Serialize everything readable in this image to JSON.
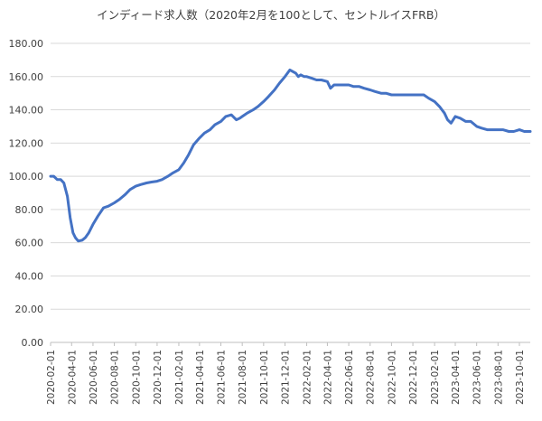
{
  "chart_data": {
    "type": "line",
    "title": "インディード求人数（2020年2月を100として、セントルイスFRB）",
    "xlabel": "",
    "ylabel": "",
    "ylim": [
      0,
      180
    ],
    "yticks": [
      0,
      20,
      40,
      60,
      80,
      100,
      120,
      140,
      160,
      180
    ],
    "ytick_labels": [
      "0.00",
      "20.00",
      "40.00",
      "60.00",
      "80.00",
      "100.00",
      "120.00",
      "140.00",
      "160.00",
      "180.00"
    ],
    "xlim": [
      "2020-02-01",
      "2023-11-01"
    ],
    "xtick_labels": [
      "2020-02-01",
      "2020-04-01",
      "2020-06-01",
      "2020-08-01",
      "2020-10-01",
      "2020-12-01",
      "2021-02-01",
      "2021-04-01",
      "2021-06-01",
      "2021-08-01",
      "2021-10-01",
      "2021-12-01",
      "2022-02-01",
      "2022-04-01",
      "2022-06-01",
      "2022-08-01",
      "2022-10-01",
      "2022-12-01",
      "2023-02-01",
      "2023-04-01",
      "2023-06-01",
      "2023-08-01",
      "2023-10-01"
    ],
    "grid": true,
    "legend": "none",
    "color": "#4472c4",
    "series": [
      {
        "x": [
          "2020-02-01",
          "2020-02-10",
          "2020-02-20",
          "2020-03-01",
          "2020-03-10",
          "2020-03-20",
          "2020-03-28",
          "2020-04-05",
          "2020-04-12",
          "2020-04-20",
          "2020-05-01",
          "2020-05-10",
          "2020-05-20",
          "2020-06-01",
          "2020-06-15",
          "2020-07-01",
          "2020-07-15",
          "2020-08-01",
          "2020-08-15",
          "2020-09-01",
          "2020-09-15",
          "2020-10-01",
          "2020-10-15",
          "2020-11-01",
          "2020-11-15",
          "2020-12-01",
          "2020-12-15",
          "2021-01-01",
          "2021-01-15",
          "2021-02-01",
          "2021-02-15",
          "2021-03-01",
          "2021-03-15",
          "2021-04-01",
          "2021-04-15",
          "2021-05-01",
          "2021-05-15",
          "2021-06-01",
          "2021-06-15",
          "2021-07-01",
          "2021-07-15",
          "2021-07-25",
          "2021-08-01",
          "2021-08-15",
          "2021-09-01",
          "2021-09-15",
          "2021-10-01",
          "2021-10-15",
          "2021-11-01",
          "2021-11-15",
          "2021-12-01",
          "2021-12-15",
          "2022-01-01",
          "2022-01-08",
          "2022-01-15",
          "2022-01-25",
          "2022-02-01",
          "2022-02-15",
          "2022-03-01",
          "2022-03-15",
          "2022-04-01",
          "2022-04-10",
          "2022-04-20",
          "2022-05-01",
          "2022-05-15",
          "2022-06-01",
          "2022-06-15",
          "2022-07-01",
          "2022-07-15",
          "2022-08-01",
          "2022-08-15",
          "2022-09-01",
          "2022-09-15",
          "2022-10-01",
          "2022-10-15",
          "2022-11-01",
          "2022-11-15",
          "2022-12-01",
          "2022-12-15",
          "2023-01-01",
          "2023-01-15",
          "2023-02-01",
          "2023-02-15",
          "2023-03-01",
          "2023-03-10",
          "2023-03-20",
          "2023-04-01",
          "2023-04-15",
          "2023-05-01",
          "2023-05-15",
          "2023-06-01",
          "2023-06-15",
          "2023-07-01",
          "2023-07-15",
          "2023-08-01",
          "2023-08-15",
          "2023-09-01",
          "2023-09-15",
          "2023-10-01",
          "2023-10-15",
          "2023-11-01"
        ],
        "values": [
          100.0,
          100.0,
          98.0,
          98.0,
          96.0,
          88.0,
          75.0,
          66.0,
          63.0,
          61.0,
          61.5,
          63.0,
          66.0,
          71.0,
          76.0,
          81.0,
          82.0,
          84.0,
          86.0,
          89.0,
          92.0,
          94.0,
          95.0,
          96.0,
          96.5,
          97.0,
          98.0,
          100.0,
          102.0,
          104.0,
          108.0,
          113.0,
          119.0,
          123.0,
          126.0,
          128.0,
          131.0,
          133.0,
          136.0,
          137.0,
          134.0,
          135.0,
          136.0,
          138.0,
          140.0,
          142.0,
          145.0,
          148.0,
          152.0,
          156.0,
          160.0,
          164.0,
          162.0,
          160.0,
          161.0,
          160.0,
          160.0,
          159.0,
          158.0,
          158.0,
          157.0,
          153.0,
          155.0,
          155.0,
          155.0,
          155.0,
          154.0,
          154.0,
          153.0,
          152.0,
          151.0,
          150.0,
          150.0,
          149.0,
          149.0,
          149.0,
          149.0,
          149.0,
          149.0,
          149.0,
          147.0,
          145.0,
          142.0,
          138.0,
          134.0,
          132.0,
          136.0,
          135.0,
          133.0,
          133.0,
          130.0,
          129.0,
          128.0,
          128.0,
          128.0,
          128.0,
          127.0,
          127.0,
          128.0,
          127.0,
          127.0
        ]
      }
    ]
  }
}
